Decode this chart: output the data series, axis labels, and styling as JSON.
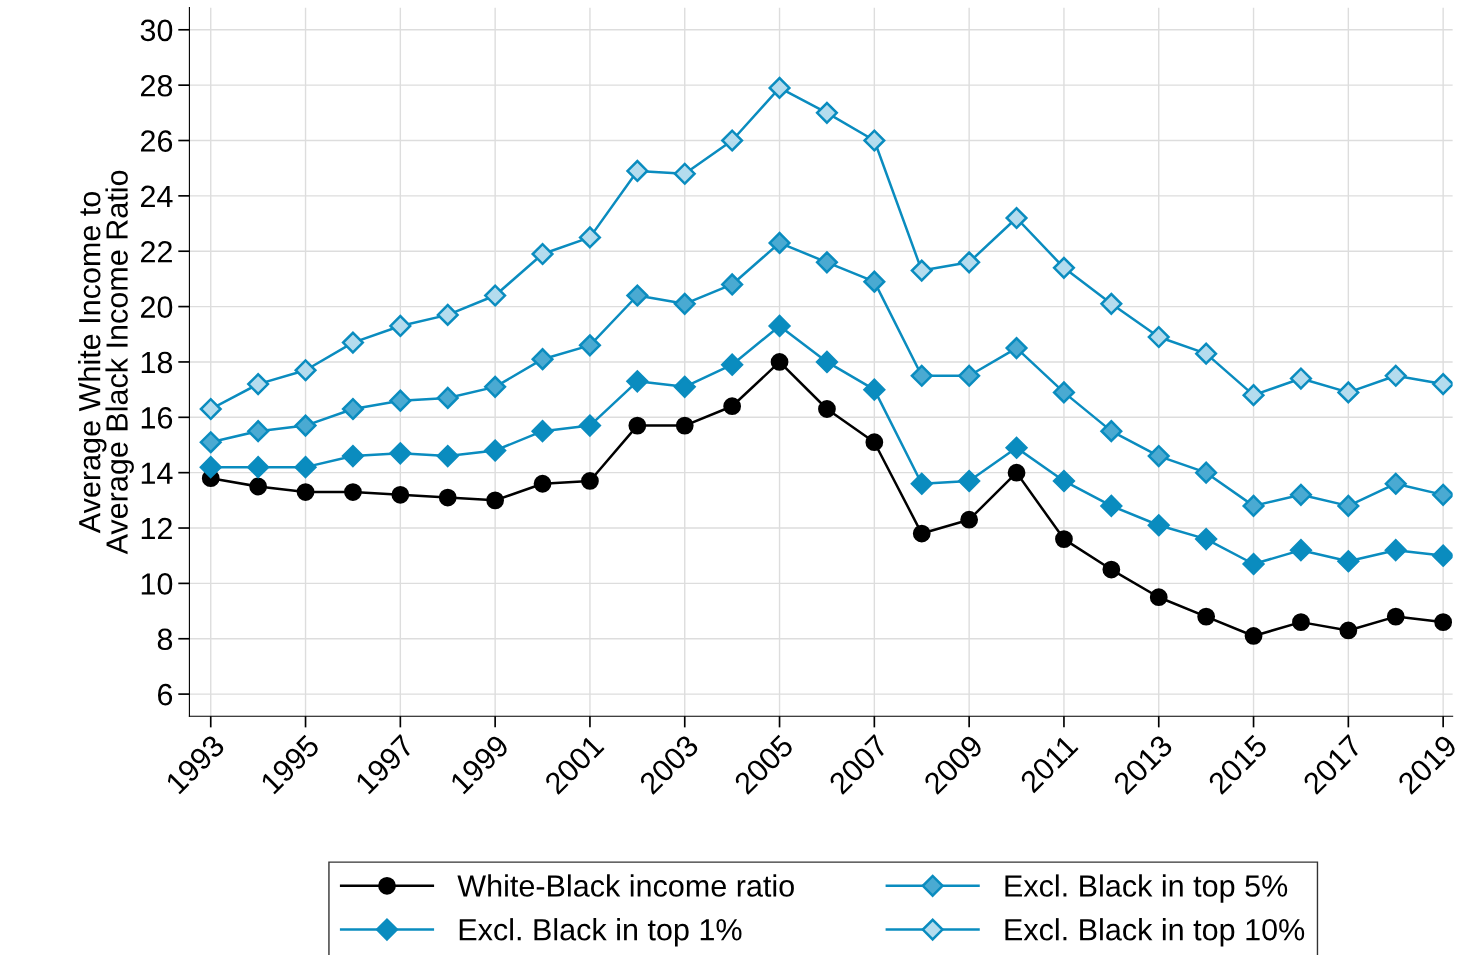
{
  "chart_data": {
    "type": "line",
    "ylabel": "Average White Income to\nAverage Black Income Ratio",
    "x": [
      1993,
      1994,
      1995,
      1996,
      1997,
      1998,
      1999,
      2000,
      2001,
      2002,
      2003,
      2004,
      2005,
      2006,
      2007,
      2008,
      2009,
      2010,
      2011,
      2012,
      2013,
      2014,
      2015,
      2016,
      2017,
      2018,
      2019
    ],
    "series": [
      {
        "name": "White-Black income ratio",
        "color": "#000000",
        "marker": "circle",
        "values": [
          13.8,
          13.5,
          13.3,
          13.3,
          13.2,
          13.1,
          13.0,
          13.6,
          13.7,
          15.7,
          15.7,
          16.4,
          18.0,
          16.3,
          15.1,
          11.8,
          12.3,
          14.0,
          11.6,
          10.5,
          9.5,
          8.8,
          8.1,
          8.6,
          8.3,
          8.8,
          8.6
        ]
      },
      {
        "name": "Excl. Black in top 1%",
        "color": "#0a8cbf",
        "marker": "diamond",
        "values": [
          14.2,
          14.2,
          14.2,
          14.6,
          14.7,
          14.6,
          14.8,
          15.5,
          15.7,
          17.3,
          17.1,
          17.9,
          19.3,
          18.0,
          17.0,
          13.6,
          13.7,
          14.9,
          13.7,
          12.8,
          12.1,
          11.6,
          10.7,
          11.2,
          10.8,
          11.2,
          11.0
        ]
      },
      {
        "name": "Excl. Black in top 5%",
        "color": "#4aaad2",
        "marker": "diamond",
        "values": [
          15.1,
          15.5,
          15.7,
          16.3,
          16.6,
          16.7,
          17.1,
          18.1,
          18.6,
          20.4,
          20.1,
          20.8,
          22.3,
          21.6,
          20.9,
          17.5,
          17.5,
          18.5,
          16.9,
          15.5,
          14.6,
          14.0,
          12.8,
          13.2,
          12.8,
          13.6,
          13.2
        ]
      },
      {
        "name": "Excl. Black in top 10%",
        "color": "#b4dcee",
        "marker": "diamond",
        "values": [
          16.3,
          17.2,
          17.7,
          18.7,
          19.3,
          19.7,
          20.4,
          21.9,
          22.5,
          24.9,
          24.8,
          26.0,
          27.9,
          27.0,
          26.0,
          21.3,
          21.6,
          23.2,
          21.4,
          20.1,
          18.9,
          18.3,
          16.8,
          17.4,
          16.9,
          17.5,
          17.2
        ]
      }
    ],
    "xlim": [
      1992.55,
      2019.2
    ],
    "xticks": [
      1993,
      1995,
      1997,
      1999,
      2001,
      2003,
      2005,
      2007,
      2009,
      2011,
      2013,
      2015,
      2017,
      2019
    ],
    "ylim": [
      5.2,
      30.8
    ],
    "yticks": [
      6,
      8,
      10,
      12,
      14,
      16,
      18,
      20,
      22,
      24,
      26,
      28,
      30
    ],
    "grid": true,
    "legend": "bottom"
  }
}
